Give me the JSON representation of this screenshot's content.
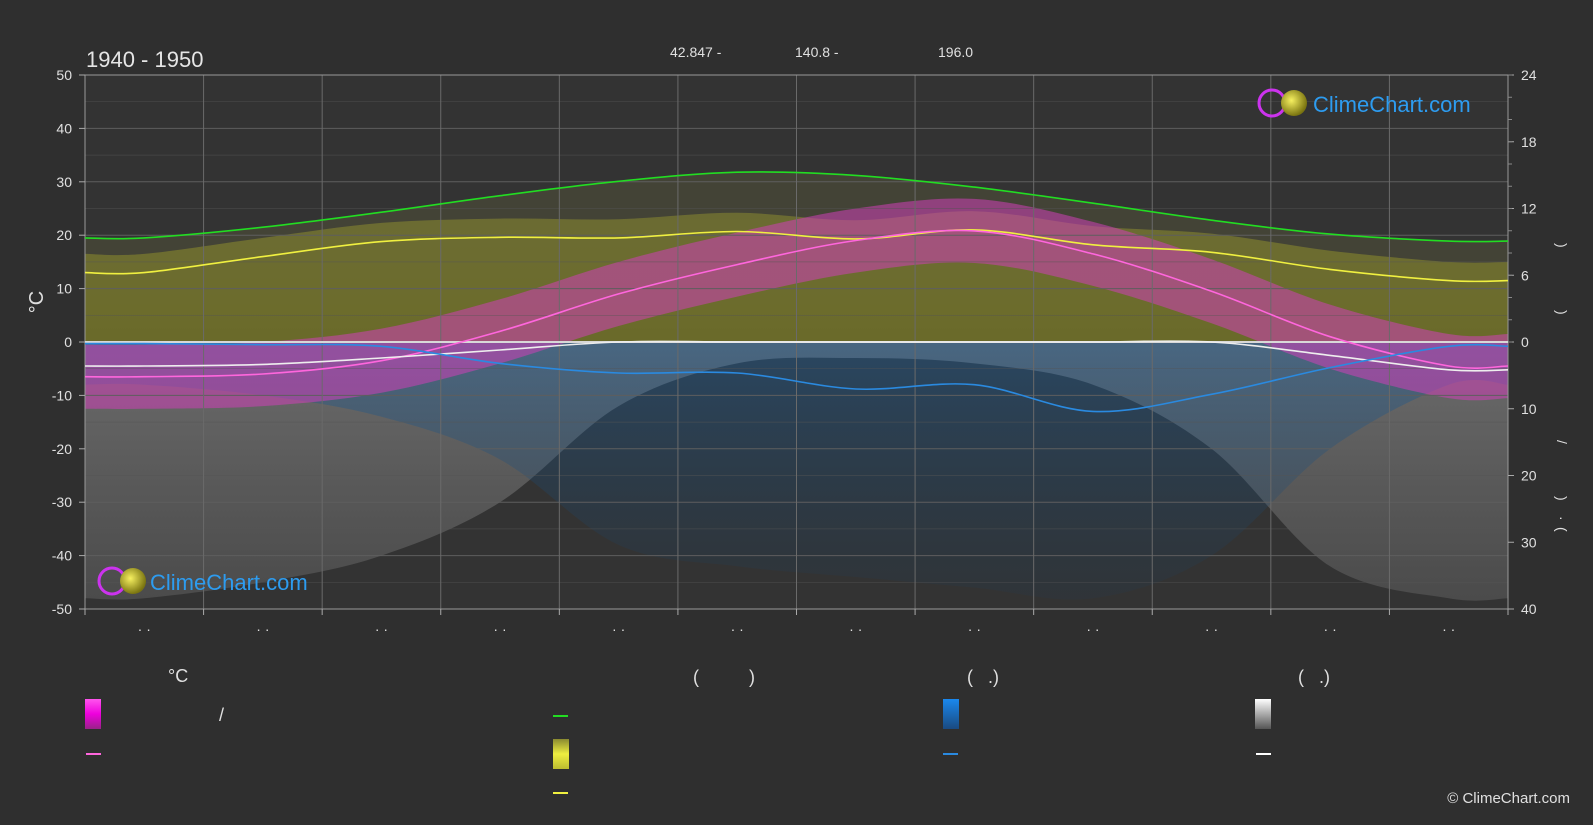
{
  "chart_data": {
    "type": "area",
    "title": "1940 - 1950",
    "header_values": [
      "42.847 -",
      "140.8 -",
      "196.0"
    ],
    "ylabel_left": "°C",
    "ylabel_right_top": ")",
    "ylabel_right_mid": ")",
    "ylabel_right_slash": "/",
    "ylabel_right_low": ")",
    "ylabel_right_dot": "·",
    "ylabel_right_paren": "(",
    "ylim_left": [
      -50,
      50
    ],
    "yticks_left": [
      50,
      40,
      30,
      20,
      10,
      0,
      -10,
      -20,
      -30,
      -40,
      -50
    ],
    "yticks_left_labels": [
      "50",
      "40",
      "30",
      "20",
      "10",
      "0",
      "-10",
      "-20",
      "-30",
      "-40",
      "-50"
    ],
    "yticks_right_top": [
      "24",
      "18",
      "12",
      "6",
      "0"
    ],
    "yticks_right_bottom": [
      "10",
      "20",
      "30",
      "40"
    ],
    "month_tick_labels": [
      "· ·",
      "· ·",
      "· ·",
      "· ·",
      "· ·",
      "· ·",
      "· ·",
      "· ·",
      "· ·",
      "· ·",
      "· ·",
      "· ·"
    ],
    "x_months": [
      1,
      2,
      3,
      4,
      5,
      6,
      7,
      8,
      9,
      10,
      11,
      12
    ],
    "series": [
      {
        "key": "daylight",
        "color": "#22dd22",
        "values": [
          19.5,
          21.5,
          24.3,
          27.4,
          30.1,
          31.8,
          31.2,
          29.0,
          26.0,
          22.8,
          20.2,
          18.9
        ]
      },
      {
        "key": "sunshine",
        "color": "#f0f040",
        "values": [
          13.0,
          16.0,
          18.8,
          19.6,
          19.5,
          20.7,
          19.3,
          21.0,
          18.2,
          16.8,
          13.6,
          11.5
        ]
      },
      {
        "key": "temp_mean",
        "color": "#ff66dd",
        "values": [
          -6.5,
          -6.0,
          -3.5,
          2.0,
          9.0,
          14.5,
          19.0,
          20.8,
          16.5,
          9.5,
          1.0,
          -4.5
        ]
      },
      {
        "key": "snow",
        "color": "#eeeeee",
        "values": [
          -4.5,
          -4.2,
          -3.0,
          -1.5,
          0.0,
          0.0,
          0.0,
          0.0,
          0.0,
          0.0,
          -2.5,
          -5.2
        ]
      },
      {
        "key": "rain",
        "color": "#2a8ae0",
        "values": [
          -0.3,
          -0.5,
          -0.8,
          -4.0,
          -5.8,
          -5.8,
          -8.8,
          -8.0,
          -13.0,
          -9.8,
          -4.8,
          -0.8
        ]
      }
    ],
    "grid": true,
    "copyright": "© ClimeChart.com",
    "logo_text": "ClimeChart.com"
  },
  "legend": {
    "col1_header": "°C",
    "col1_slash": "/",
    "col2_header": "(          )",
    "col3_header": "(   .)",
    "col4_header": "(   .)",
    "colors": {
      "temp_range": "#ee22dd",
      "temp_mean": "#ff66dd",
      "daylight": "#22dd22",
      "sunshine_fill": "#e8e840",
      "sunshine_line": "#f0f040",
      "rain_fill": "#1a80e0",
      "rain_line": "#2a8ae0",
      "snow_fill": "#dddddd",
      "snow_line": "#ffffff"
    }
  }
}
